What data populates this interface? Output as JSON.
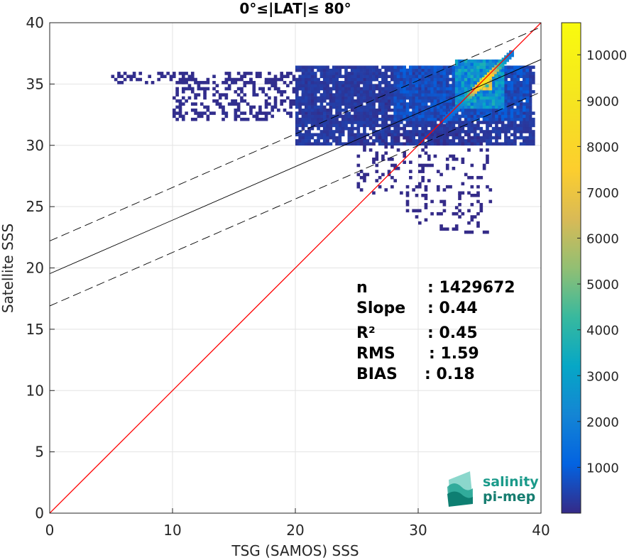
{
  "chart_data": {
    "type": "heatmap",
    "title": "0°≤|LAT|≤ 80°",
    "xlabel": "TSG (SAMOS) SSS",
    "ylabel": "Satellite SSS",
    "xlim": [
      0,
      40
    ],
    "ylim": [
      0,
      40
    ],
    "xticks": [
      "0",
      "10",
      "20",
      "30",
      "40"
    ],
    "yticks": [
      "0",
      "5",
      "10",
      "15",
      "20",
      "25",
      "30",
      "35",
      "40"
    ],
    "grid": true,
    "colormap": "parula",
    "colorbar": {
      "range": [
        0,
        10700
      ],
      "ticks": [
        "1000",
        "2000",
        "3000",
        "4000",
        "5000",
        "6000",
        "7000",
        "8000",
        "9000",
        "10000"
      ]
    },
    "lines": [
      {
        "role": "one-to-one",
        "color": "#ff0000",
        "style": "solid",
        "x": [
          0,
          40
        ],
        "y": [
          0,
          40
        ]
      },
      {
        "role": "regression",
        "color": "#000000",
        "style": "solid",
        "x": [
          0,
          40
        ],
        "y": [
          19.53,
          37.0
        ]
      },
      {
        "role": "regression-upper",
        "color": "#000000",
        "style": "dashed",
        "x": [
          0,
          40
        ],
        "y": [
          22.2,
          39.65
        ]
      },
      {
        "role": "regression-lower",
        "color": "#000000",
        "style": "dashed",
        "x": [
          0,
          40
        ],
        "y": [
          16.9,
          34.35
        ]
      }
    ],
    "stats": [
      {
        "label": "n",
        "value": ": 1429672"
      },
      {
        "label": "Slope",
        "value": ": 0.44"
      },
      {
        "label": "R²",
        "value": ": 0.45"
      },
      {
        "label": "RMS",
        "value": ": 1.59"
      },
      {
        "label": "BIAS",
        "value": ": 0.18"
      }
    ],
    "density_regions": [
      {
        "x": [
          5,
          20
        ],
        "y": [
          35,
          36
        ],
        "level": 60
      },
      {
        "x": [
          10,
          30
        ],
        "y": [
          32,
          35.5
        ],
        "level": 80
      },
      {
        "x": [
          20,
          39.5
        ],
        "y": [
          30,
          36.5
        ],
        "level": 300
      },
      {
        "x": [
          28,
          39
        ],
        "y": [
          32,
          36.5
        ],
        "level": 700
      },
      {
        "x": [
          25,
          36
        ],
        "y": [
          26,
          31
        ],
        "level": 30
      },
      {
        "x": [
          29,
          36
        ],
        "y": [
          22.8,
          26
        ],
        "level": 15
      },
      {
        "x": [
          33,
          37
        ],
        "y": [
          33,
          37
        ],
        "level": 2500
      },
      {
        "x": [
          35,
          36
        ],
        "y": [
          34.5,
          35.5
        ],
        "level": 6000
      }
    ]
  },
  "logo": {
    "line1": "salinity",
    "line2": "pi-mep"
  },
  "colors": {
    "one_to_one": "#ff0000",
    "text": "#262626",
    "logo_text": "#1a9a8a"
  }
}
